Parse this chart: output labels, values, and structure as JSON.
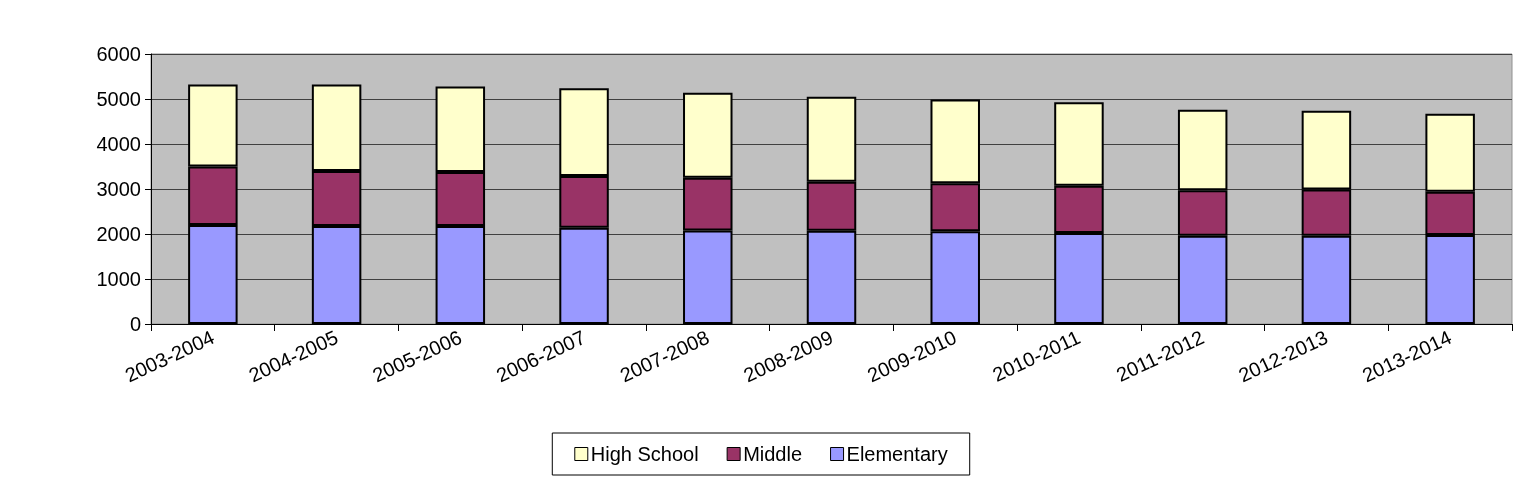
{
  "chart_data": {
    "type": "bar",
    "stacked": true,
    "categories": [
      "2003-2004",
      "2004-2005",
      "2005-2006",
      "2006-2007",
      "2007-2008",
      "2008-2009",
      "2009-2010",
      "2010-2011",
      "2011-2012",
      "2012-2013",
      "2013-2014"
    ],
    "series": [
      {
        "name": "Elementary",
        "color": "#9999ff",
        "values": [
          2200,
          2180,
          2180,
          2140,
          2080,
          2070,
          2060,
          2020,
          1960,
          1960,
          1980
        ]
      },
      {
        "name": "Middle",
        "color": "#993366",
        "values": [
          1300,
          1220,
          1200,
          1150,
          1170,
          1090,
          1070,
          1050,
          1010,
          1030,
          960
        ]
      },
      {
        "name": "High School",
        "color": "#ffffcc",
        "values": [
          1820,
          1920,
          1900,
          1950,
          1890,
          1890,
          1860,
          1860,
          1790,
          1750,
          1730
        ]
      }
    ],
    "ylim": [
      0,
      6000
    ],
    "yticks": [
      0,
      1000,
      2000,
      3000,
      4000,
      5000,
      6000
    ],
    "grid": "y",
    "legend": "bottom"
  }
}
